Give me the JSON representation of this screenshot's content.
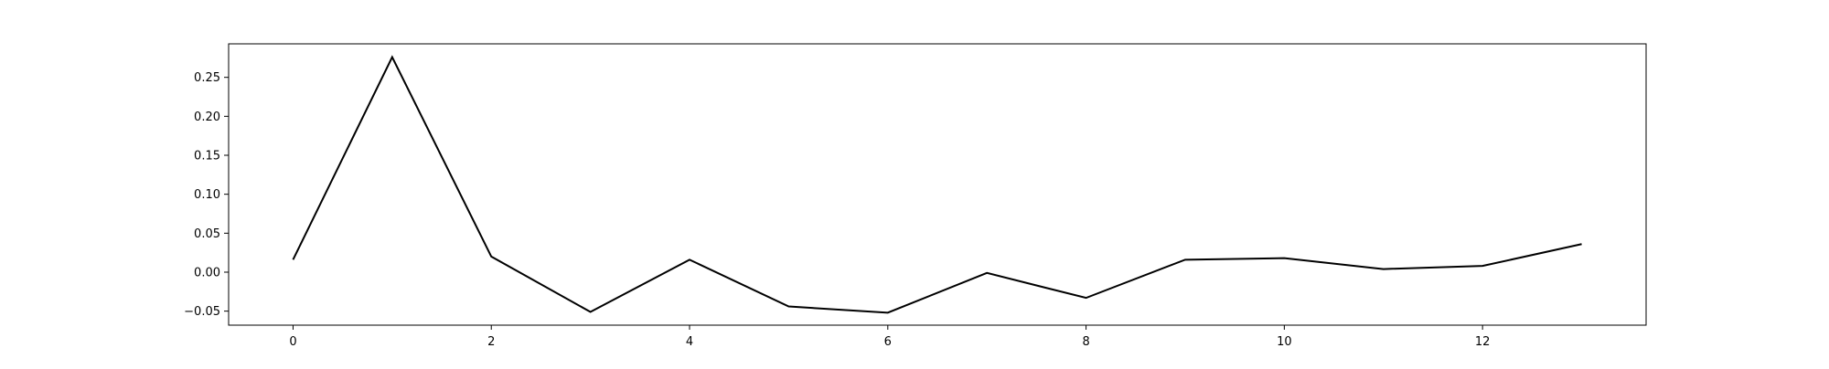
{
  "chart_data": {
    "type": "line",
    "title": "",
    "xlabel": "",
    "ylabel": "",
    "x": [
      0,
      1,
      2,
      3,
      4,
      5,
      6,
      7,
      8,
      9,
      10,
      11,
      12,
      13
    ],
    "series": [
      {
        "values": [
          0.016,
          0.276,
          0.02,
          -0.051,
          0.016,
          -0.044,
          -0.052,
          -0.001,
          -0.033,
          0.016,
          0.018,
          0.004,
          0.008,
          0.036
        ]
      }
    ],
    "xlim": [
      -0.65,
      13.65
    ],
    "ylim": [
      -0.068,
      0.293
    ],
    "x_ticks": [
      0,
      2,
      4,
      6,
      8,
      10,
      12
    ],
    "x_tick_labels": [
      "0",
      "2",
      "4",
      "6",
      "8",
      "10",
      "12"
    ],
    "y_ticks": [
      -0.05,
      0.0,
      0.05,
      0.1,
      0.15,
      0.2,
      0.25
    ],
    "y_tick_labels": [
      "−0.05",
      "0.00",
      "0.05",
      "0.10",
      "0.15",
      "0.20",
      "0.25"
    ],
    "grid": false,
    "line_color": "#000000"
  }
}
